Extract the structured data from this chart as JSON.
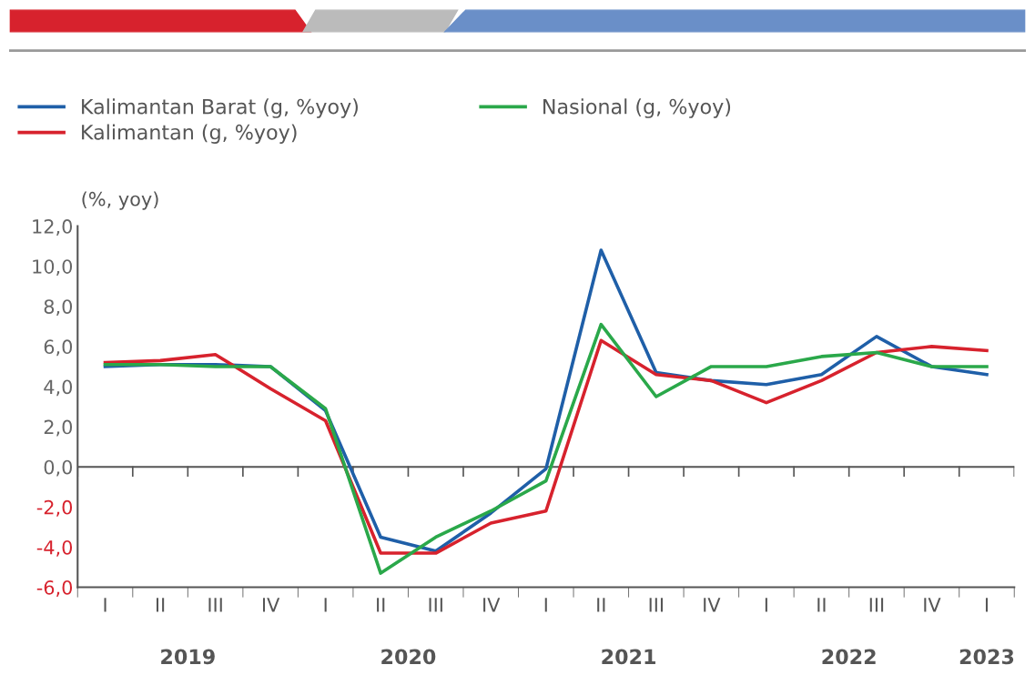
{
  "chart_data": {
    "type": "line",
    "ylabel": "(%, yoy)",
    "categories": [
      "I",
      "II",
      "III",
      "IV",
      "I",
      "II",
      "III",
      "IV",
      "I",
      "II",
      "III",
      "IV",
      "I",
      "II",
      "III",
      "IV",
      "I"
    ],
    "series": [
      {
        "name": "Kalimantan Barat (g, %yoy)",
        "color": "#1f5fa8",
        "values": [
          5.0,
          5.1,
          5.1,
          5.0,
          2.8,
          -3.5,
          -4.2,
          -2.3,
          -0.1,
          10.8,
          4.7,
          4.3,
          4.1,
          4.6,
          6.5,
          5.0,
          4.6
        ]
      },
      {
        "name": "Kalimantan (g, %yoy)",
        "color": "#d7222d",
        "values": [
          5.2,
          5.3,
          5.6,
          3.9,
          2.3,
          -4.3,
          -4.3,
          -2.8,
          -2.2,
          6.3,
          4.6,
          4.3,
          3.2,
          4.3,
          5.7,
          6.0,
          5.8
        ]
      },
      {
        "name": "Nasional (g, %yoy)",
        "color": "#2aa84a",
        "values": [
          5.1,
          5.1,
          5.0,
          5.0,
          2.9,
          -5.3,
          -3.5,
          -2.2,
          -0.7,
          7.1,
          3.5,
          5.0,
          5.0,
          5.5,
          5.7,
          5.0,
          5.0
        ]
      }
    ],
    "ylim": [
      -6,
      12
    ],
    "yticks": [
      {
        "value": -6,
        "label": "-6,0"
      },
      {
        "value": -4,
        "label": "-4,0"
      },
      {
        "value": -2,
        "label": "-2,0"
      },
      {
        "value": 0,
        "label": "0,0"
      },
      {
        "value": 2,
        "label": "2,0"
      },
      {
        "value": 4,
        "label": "4,0"
      },
      {
        "value": 6,
        "label": "6,0"
      },
      {
        "value": 8,
        "label": "8,0"
      },
      {
        "value": 10,
        "label": "10,0"
      },
      {
        "value": 12,
        "label": "12,0"
      }
    ],
    "ref_lines": [
      {
        "axis": "y",
        "value": 0,
        "color": "#555555"
      }
    ],
    "annotations": [
      "2019",
      "2020",
      "2021",
      "2022",
      "2023"
    ],
    "legend": "top left",
    "grid": false,
    "marker": "none",
    "line_style": "solid"
  }
}
